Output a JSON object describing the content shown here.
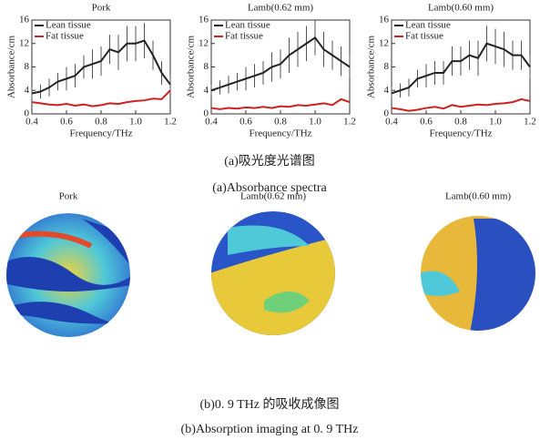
{
  "chart_data": [
    {
      "type": "line",
      "title": "Pork",
      "x_label": "Frequency/THz",
      "y_label": "Absorbance/cm",
      "x": [
        0.4,
        0.45,
        0.5,
        0.55,
        0.6,
        0.65,
        0.7,
        0.75,
        0.8,
        0.85,
        0.9,
        0.95,
        1.0,
        1.05,
        1.1,
        1.15,
        1.2
      ],
      "xlim": [
        0.4,
        1.2
      ],
      "xticks": [
        0.4,
        0.6,
        0.8,
        {
          "value": 1,
          "label": "1.0"
        },
        1.2
      ],
      "ylim": [
        0,
        16
      ],
      "yticks": [
        0,
        4,
        8,
        12,
        16
      ],
      "legend": "upper left",
      "series": [
        {
          "name": "Lean tissue",
          "color": "#222222",
          "values": [
            3.5,
            3.8,
            4.5,
            5.5,
            6,
            6.5,
            8,
            8.5,
            9,
            11,
            10.5,
            12,
            12,
            12.5,
            10,
            7,
            5
          ],
          "errors": [
            1,
            1.2,
            1.5,
            1.5,
            2,
            2,
            2,
            2.5,
            2.5,
            2.5,
            3,
            3,
            3,
            3,
            2.5,
            2,
            1.5
          ]
        },
        {
          "name": "Fat tissue",
          "color": "#cc2222",
          "values": [
            2,
            1.8,
            1.6,
            1.5,
            1.7,
            1.4,
            1.6,
            1.3,
            1.5,
            1.8,
            1.7,
            2,
            2.2,
            2.3,
            2.6,
            2.5,
            4
          ]
        }
      ]
    },
    {
      "type": "line",
      "title": "Lamb(0.62 mm)",
      "x_label": "Frequency/THz",
      "y_label": "Absorbance/cm",
      "x": [
        0.4,
        0.45,
        0.5,
        0.55,
        0.6,
        0.65,
        0.7,
        0.75,
        0.8,
        0.85,
        0.9,
        0.95,
        1.0,
        1.05,
        1.1,
        1.15,
        1.2
      ],
      "xlim": [
        0.4,
        1.2
      ],
      "xticks": [
        0.4,
        0.6,
        0.8,
        {
          "value": 1,
          "label": "1.0"
        },
        1.2
      ],
      "ylim": [
        0,
        16
      ],
      "yticks": [
        0,
        4,
        8,
        12,
        16
      ],
      "legend": "upper left",
      "series": [
        {
          "name": "Lean tissue",
          "color": "#222222",
          "values": [
            4,
            4.5,
            5,
            5.5,
            6,
            6.5,
            7,
            8,
            8.5,
            10,
            11,
            12,
            13,
            11,
            10,
            9,
            8
          ],
          "errors": [
            1,
            1.2,
            1.5,
            1.5,
            2,
            2,
            2,
            2.5,
            2.5,
            3,
            3,
            3,
            3,
            3,
            2.5,
            2.5,
            2
          ]
        },
        {
          "name": "Fat tissue",
          "color": "#cc2222",
          "values": [
            1,
            0.8,
            1,
            0.9,
            1.1,
            1,
            1.2,
            1,
            1.3,
            1.2,
            1.5,
            1.4,
            1.6,
            1.8,
            1.5,
            2.5,
            2
          ]
        }
      ]
    },
    {
      "type": "line",
      "title": "Lamb(0.60 mm)",
      "x_label": "Frequency/THz",
      "y_label": "Absorbance/cm",
      "x": [
        0.4,
        0.45,
        0.5,
        0.55,
        0.6,
        0.65,
        0.7,
        0.75,
        0.8,
        0.85,
        0.9,
        0.95,
        1.0,
        1.05,
        1.1,
        1.15,
        1.2
      ],
      "xlim": [
        0.4,
        1.2
      ],
      "xticks": [
        0.4,
        0.6,
        0.8,
        {
          "value": 1,
          "label": "1.0"
        },
        1.2
      ],
      "ylim": [
        0,
        16
      ],
      "yticks": [
        0,
        4,
        8,
        12,
        16
      ],
      "legend": "upper left",
      "series": [
        {
          "name": "Lean tissue",
          "color": "#222222",
          "values": [
            3.5,
            4,
            4.5,
            6,
            6.5,
            7,
            7,
            9,
            9,
            10,
            9.5,
            12,
            11.5,
            11,
            10,
            10,
            8
          ],
          "errors": [
            1,
            1.2,
            1.5,
            1.5,
            2,
            2,
            2,
            2.5,
            2.5,
            2.5,
            3,
            3,
            3,
            3,
            2.5,
            2.5,
            2
          ]
        },
        {
          "name": "Fat tissue",
          "color": "#cc2222",
          "values": [
            1,
            0.8,
            0.5,
            0.7,
            1,
            1.2,
            0.9,
            1.5,
            1.2,
            1.4,
            1.6,
            1.5,
            1.7,
            1.8,
            2,
            2.5,
            2.2
          ]
        }
      ]
    }
  ],
  "captions": [
    "(a)吸光度光谱图",
    "(a)Absorbance spectra",
    "(b)0. 9 THz 的吸收成像图",
    "(b)Absorption imaging at 0. 9 THz"
  ],
  "images": [
    {
      "title": "Pork"
    },
    {
      "title": "Lamb(0.62 mm)"
    },
    {
      "title": "Lamb(0.60 mm)"
    }
  ]
}
